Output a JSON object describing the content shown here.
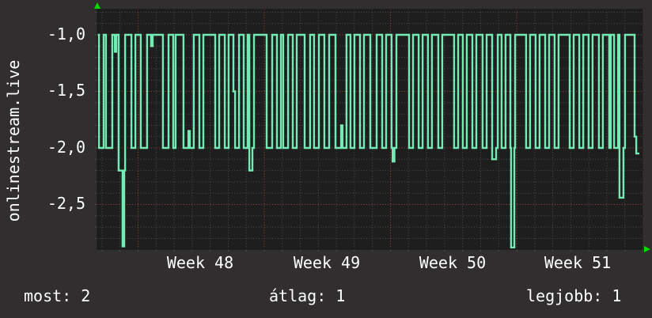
{
  "axis_title": "onlinestream.live",
  "y_axis": {
    "labels": [
      "-1,0",
      "-1,5",
      "-2,0",
      "-2,5"
    ],
    "values": [
      -1.0,
      -1.5,
      -2.0,
      -2.5
    ]
  },
  "x_axis": {
    "labels": [
      "Week 48",
      "Week 49",
      "Week 50",
      "Week 51"
    ]
  },
  "stats": [
    {
      "name": "most",
      "text": "most: 2"
    },
    {
      "name": "átlag",
      "text": "átlag: 1"
    },
    {
      "name": "legjobb",
      "text": "legjobb: 1"
    }
  ],
  "colors": {
    "bg_outer": "#302e2e",
    "bg_plot": "#1e1e1e",
    "grid_minor": "#4e4e4e",
    "grid_major": "#a3493f",
    "line": "#74ebb4",
    "text": "#ffffff",
    "arrow": "#00dc00",
    "border": "#161616",
    "tick": "#4a4a4a"
  },
  "chart_data": {
    "type": "line",
    "subtype": "step",
    "title": "",
    "ylabel": "onlinestream.live",
    "xlabel": "",
    "x_unit": "days (0 = start of Week 48)",
    "x_range": [
      -2.26,
      27.97
    ],
    "ylim": [
      -2.9,
      -0.78
    ],
    "y_major_ticks": [
      -1.0,
      -1.5,
      -2.0,
      -2.5
    ],
    "y_minor_step": 0.1,
    "x_major_ticks_weeks": [
      "Week 48",
      "Week 49",
      "Week 50",
      "Week 51"
    ],
    "x_minor_step_days": 1,
    "grid": "dotted; minor gray per day / per 0.1, major red per week / per 0.5",
    "legend_position": "bottom",
    "legend": [
      {
        "label": "most",
        "value": "2"
      },
      {
        "label": "átlag",
        "value": "1"
      },
      {
        "label": "legjobb",
        "value": "1"
      }
    ],
    "series": [
      {
        "name": "onlinestream.live",
        "color": "#74ebb4",
        "points": [
          [
            -2.26,
            -1
          ],
          [
            -2.17,
            -2
          ],
          [
            -1.91,
            -1
          ],
          [
            -1.78,
            -2
          ],
          [
            -1.43,
            -1
          ],
          [
            -1.29,
            -1.15
          ],
          [
            -1.21,
            -1
          ],
          [
            -1.08,
            -2.2
          ],
          [
            -0.86,
            -2.87
          ],
          [
            -0.77,
            -2.2
          ],
          [
            -0.72,
            -1
          ],
          [
            -0.37,
            -2
          ],
          [
            -0.15,
            -1
          ],
          [
            0.15,
            -2
          ],
          [
            0.5,
            -1
          ],
          [
            0.72,
            -1.1
          ],
          [
            0.81,
            -1
          ],
          [
            1.38,
            -2
          ],
          [
            1.69,
            -1
          ],
          [
            1.95,
            -2
          ],
          [
            2.08,
            -1
          ],
          [
            2.52,
            -2
          ],
          [
            2.79,
            -1.85
          ],
          [
            2.87,
            -2
          ],
          [
            3.09,
            -1
          ],
          [
            3.4,
            -2
          ],
          [
            3.62,
            -1
          ],
          [
            4.28,
            -2
          ],
          [
            4.5,
            -1
          ],
          [
            4.81,
            -2
          ],
          [
            5.02,
            -1
          ],
          [
            5.29,
            -1.5
          ],
          [
            5.38,
            -2
          ],
          [
            5.6,
            -1
          ],
          [
            5.86,
            -2
          ],
          [
            6.08,
            -1
          ],
          [
            6.17,
            -2.2
          ],
          [
            6.34,
            -2
          ],
          [
            6.43,
            -1
          ],
          [
            7.13,
            -2
          ],
          [
            7.44,
            -1
          ],
          [
            7.7,
            -2
          ],
          [
            7.92,
            -1
          ],
          [
            8.05,
            -2
          ],
          [
            8.32,
            -1
          ],
          [
            8.58,
            -2
          ],
          [
            8.8,
            -1
          ],
          [
            9.24,
            -2
          ],
          [
            9.54,
            -1
          ],
          [
            9.76,
            -2
          ],
          [
            10.03,
            -1
          ],
          [
            10.33,
            -2
          ],
          [
            10.6,
            -1
          ],
          [
            10.95,
            -2
          ],
          [
            11.26,
            -1.8
          ],
          [
            11.34,
            -2
          ],
          [
            11.56,
            -1
          ],
          [
            11.78,
            -2
          ],
          [
            12.0,
            -1
          ],
          [
            12.31,
            -2
          ],
          [
            12.53,
            -1
          ],
          [
            12.88,
            -2
          ],
          [
            13.23,
            -1
          ],
          [
            13.54,
            -2
          ],
          [
            13.76,
            -1
          ],
          [
            14.06,
            -2
          ],
          [
            14.12,
            -2.12
          ],
          [
            14.22,
            -2
          ],
          [
            14.33,
            -1
          ],
          [
            15.03,
            -2
          ],
          [
            15.25,
            -1
          ],
          [
            15.56,
            -2
          ],
          [
            15.78,
            -1
          ],
          [
            16.08,
            -2
          ],
          [
            16.3,
            -1
          ],
          [
            16.65,
            -2
          ],
          [
            16.87,
            -1
          ],
          [
            17.53,
            -2
          ],
          [
            17.75,
            -1
          ],
          [
            18.01,
            -2
          ],
          [
            18.23,
            -1
          ],
          [
            18.54,
            -2
          ],
          [
            18.76,
            -1
          ],
          [
            19.11,
            -2
          ],
          [
            19.33,
            -1
          ],
          [
            19.64,
            -2.1
          ],
          [
            19.86,
            -2
          ],
          [
            19.95,
            -1
          ],
          [
            20.16,
            -2
          ],
          [
            20.38,
            -1
          ],
          [
            20.65,
            -2
          ],
          [
            20.69,
            -2.88
          ],
          [
            20.87,
            -2
          ],
          [
            20.91,
            -1
          ],
          [
            21.52,
            -2
          ],
          [
            21.74,
            -1
          ],
          [
            22.05,
            -2
          ],
          [
            22.27,
            -1
          ],
          [
            22.58,
            -2
          ],
          [
            22.8,
            -1
          ],
          [
            23.1,
            -2
          ],
          [
            23.32,
            -1
          ],
          [
            23.94,
            -2
          ],
          [
            24.16,
            -1
          ],
          [
            24.47,
            -2
          ],
          [
            24.69,
            -1
          ],
          [
            24.99,
            -2
          ],
          [
            25.21,
            -1
          ],
          [
            25.56,
            -2
          ],
          [
            25.78,
            -1
          ],
          [
            26.13,
            -2
          ],
          [
            26.22,
            -1
          ],
          [
            26.4,
            -2
          ],
          [
            26.62,
            -1
          ],
          [
            26.7,
            -2.44
          ],
          [
            26.92,
            -2
          ],
          [
            27.01,
            -1
          ],
          [
            27.54,
            -1.9
          ],
          [
            27.63,
            -2.05
          ],
          [
            27.8,
            -2.05
          ]
        ]
      }
    ]
  }
}
